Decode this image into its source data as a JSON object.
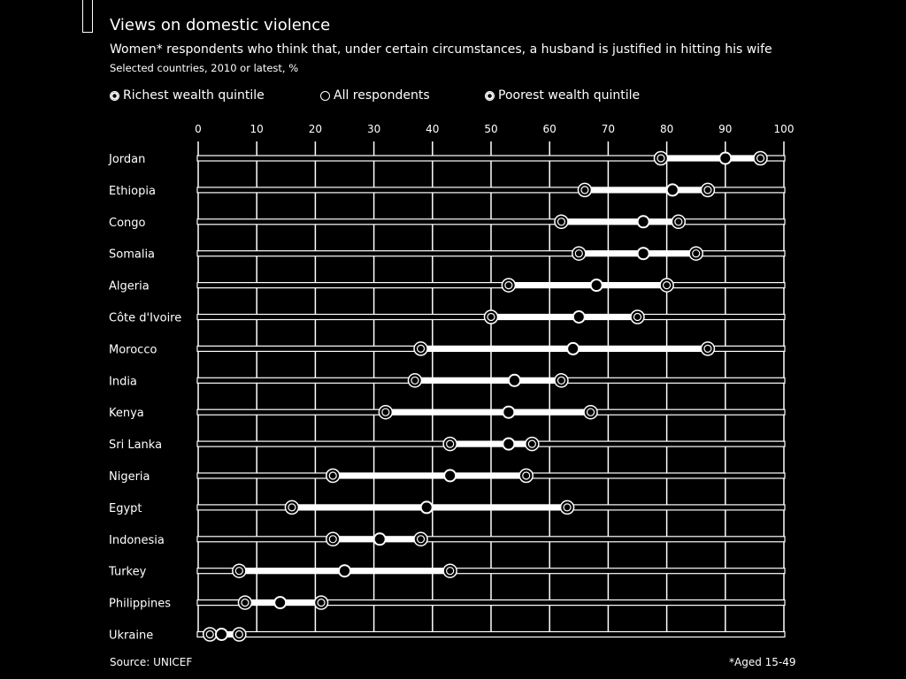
{
  "header": {
    "title": "Views on domestic violence",
    "subtitle": "Women* respondents who think that, under certain circumstances, a husband is justified in hitting his wife",
    "note": "Selected countries, 2010 or latest, %"
  },
  "footer": {
    "source": "Source: UNICEF",
    "footnote": "*Aged 15-49"
  },
  "colors": {
    "background": "#000000",
    "foreground": "#ffffff"
  },
  "chart_data": {
    "type": "scatter",
    "title": "Views on domestic violence",
    "xlim": [
      0,
      100
    ],
    "xticks": [
      0,
      10,
      20,
      30,
      40,
      50,
      60,
      70,
      80,
      90,
      100
    ],
    "grid": true,
    "legend_placement": "top",
    "categories": [
      "Jordan",
      "Ethiopia",
      "Congo",
      "Somalia",
      "Algeria",
      "Côte d'Ivoire",
      "Morocco",
      "India",
      "Kenya",
      "Sri Lanka",
      "Nigeria",
      "Egypt",
      "Indonesia",
      "Turkey",
      "Philippines",
      "Ukraine"
    ],
    "series": [
      {
        "name": "Richest wealth quintile",
        "marker": "ring",
        "values": [
          79,
          66,
          62,
          65,
          53,
          50,
          38,
          37,
          32,
          43,
          23,
          16,
          23,
          7,
          8,
          2
        ]
      },
      {
        "name": "All respondents",
        "marker": "filled",
        "values": [
          90,
          81,
          76,
          76,
          68,
          65,
          64,
          54,
          53,
          53,
          43,
          39,
          31,
          25,
          14,
          4
        ]
      },
      {
        "name": "Poorest wealth quintile",
        "marker": "ring",
        "values": [
          96,
          87,
          82,
          85,
          80,
          75,
          87,
          62,
          67,
          57,
          56,
          63,
          38,
          43,
          21,
          7
        ]
      }
    ]
  }
}
